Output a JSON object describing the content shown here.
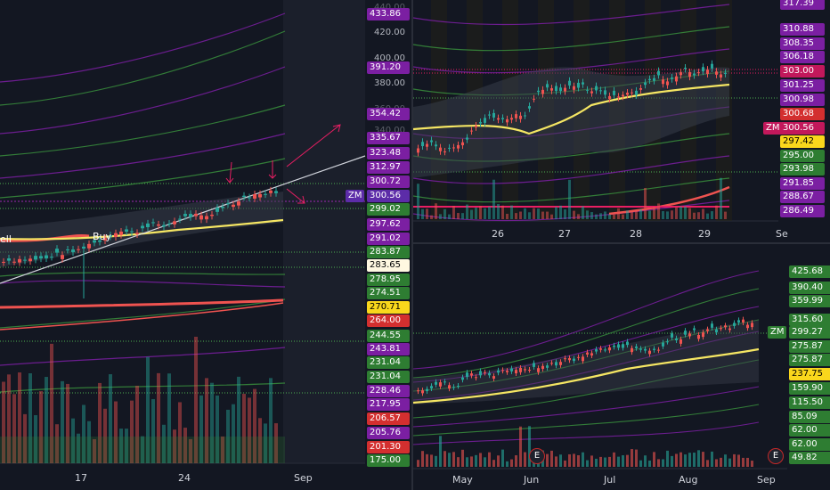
{
  "left_chart": {
    "buy_label": "Buy",
    "sell_fragment": "ell",
    "symbol_badge": "ZM",
    "price_scale_ticks": [
      "440.00",
      "420.00",
      "400.00",
      "380.00",
      "360.00",
      "340.00"
    ],
    "price_tags": [
      {
        "v": "433.86",
        "color": "#7b1fa2"
      },
      {
        "v": "391.20",
        "color": "#7b1fa2"
      },
      {
        "v": "354.42",
        "color": "#7b1fa2"
      },
      {
        "v": "335.67",
        "color": "#7b1fa2"
      },
      {
        "v": "323.48",
        "color": "#7b1fa2"
      },
      {
        "v": "312.97",
        "color": "#7b1fa2"
      },
      {
        "v": "300.72",
        "color": "#7b1fa2"
      },
      {
        "v": "300.56",
        "color": "#5c2ca8"
      },
      {
        "v": "299.02",
        "color": "#2e7d32"
      },
      {
        "v": "297.62",
        "color": "#7b1fa2"
      },
      {
        "v": "291.02",
        "color": "#7b1fa2"
      },
      {
        "v": "283.87",
        "color": "#2e7d32"
      },
      {
        "v": "283.65",
        "color": "#fff8e1",
        "text": "#000000"
      },
      {
        "v": "278.95",
        "color": "#2e7d32"
      },
      {
        "v": "274.51",
        "color": "#2e7d32"
      },
      {
        "v": "270.71",
        "color": "#f9d71c",
        "text": "#000000"
      },
      {
        "v": "264.00",
        "color": "#d32f2f"
      },
      {
        "v": "244.55",
        "color": "#2e7d32"
      },
      {
        "v": "243.81",
        "color": "#7b1fa2"
      },
      {
        "v": "231.04",
        "color": "#2e7d32"
      },
      {
        "v": "231.04",
        "color": "#2e7d32"
      },
      {
        "v": "228.46",
        "color": "#7b1fa2"
      },
      {
        "v": "217.95",
        "color": "#7b1fa2"
      },
      {
        "v": "206.57",
        "color": "#d32f2f"
      },
      {
        "v": "205.76",
        "color": "#7b1fa2"
      },
      {
        "v": "201.30",
        "color": "#d32f2f"
      },
      {
        "v": "175.00",
        "color": "#2e7d32"
      }
    ],
    "x_labels": [
      "17",
      "24",
      "Sep"
    ]
  },
  "top_right_chart": {
    "symbol_badge": "ZM",
    "price_tags": [
      {
        "v": "317.39",
        "color": "#7b1fa2"
      },
      {
        "v": "310.88",
        "color": "#7b1fa2"
      },
      {
        "v": "308.35",
        "color": "#7b1fa2"
      },
      {
        "v": "306.18",
        "color": "#7b1fa2"
      },
      {
        "v": "303.00",
        "color": "#c2185b"
      },
      {
        "v": "301.25",
        "color": "#7b1fa2"
      },
      {
        "v": "300.98",
        "color": "#7b1fa2"
      },
      {
        "v": "300.68",
        "color": "#d32f2f"
      },
      {
        "v": "300.56",
        "color": "#c2185b"
      },
      {
        "v": "297.42",
        "color": "#f9d71c",
        "text": "#000000"
      },
      {
        "v": "295.00",
        "color": "#2e7d32"
      },
      {
        "v": "293.98",
        "color": "#2e7d32"
      },
      {
        "v": "291.85",
        "color": "#7b1fa2"
      },
      {
        "v": "288.67",
        "color": "#7b1fa2"
      },
      {
        "v": "286.49",
        "color": "#7b1fa2"
      }
    ],
    "x_labels": [
      "26",
      "27",
      "28",
      "29",
      "Se"
    ]
  },
  "bottom_right_chart": {
    "symbol_badge": "ZM",
    "earnings_marker": "E",
    "price_tags": [
      {
        "v": "425.68",
        "color": "#2e7d32"
      },
      {
        "v": "390.40",
        "color": "#2e7d32"
      },
      {
        "v": "359.99",
        "color": "#2e7d32"
      },
      {
        "v": "315.60",
        "color": "#2e7d32"
      },
      {
        "v": "299.27",
        "color": "#2e7d32"
      },
      {
        "v": "275.87",
        "color": "#2e7d32"
      },
      {
        "v": "275.87",
        "color": "#2e7d32"
      },
      {
        "v": "237.75",
        "color": "#f9d71c",
        "text": "#000000"
      },
      {
        "v": "159.90",
        "color": "#2e7d32"
      },
      {
        "v": "115.50",
        "color": "#2e7d32"
      },
      {
        "v": "85.09",
        "color": "#2e7d32"
      },
      {
        "v": "62.00",
        "color": "#2e7d32"
      },
      {
        "v": "62.00",
        "color": "#2e7d32"
      },
      {
        "v": "49.82",
        "color": "#2e7d32"
      }
    ],
    "x_labels": [
      "May",
      "Jun",
      "Jul",
      "Aug",
      "Sep"
    ]
  }
}
